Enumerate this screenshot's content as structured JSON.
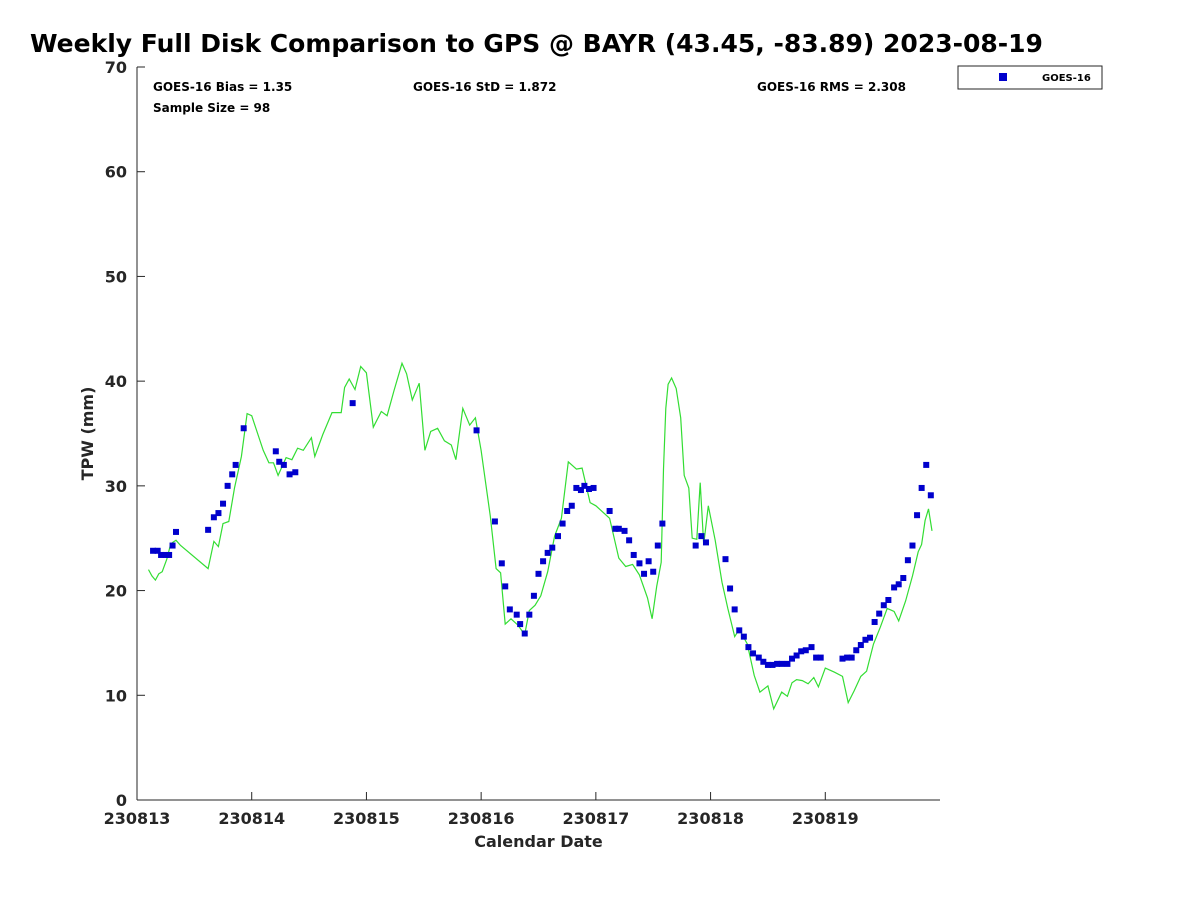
{
  "chart_data": {
    "type": "scatter",
    "title": "Weekly Full Disk Comparison to GPS @ BAYR (43.45, -83.89) 2023-08-19",
    "xlabel": "Calendar Date",
    "ylabel": "TPW (mm)",
    "xlim": [
      230813,
      230820
    ],
    "ylim": [
      0,
      70
    ],
    "x_tick_labels": [
      "230813",
      "230814",
      "230815",
      "230816",
      "230817",
      "230818",
      "230819"
    ],
    "y_ticks": [
      0,
      10,
      20,
      30,
      40,
      50,
      60,
      70
    ],
    "grid": false,
    "legend_position": "top-right",
    "stats": [
      "GOES-16 Bias = 1.35",
      "GOES-16 StD = 1.872",
      "GOES-16 RMS = 2.308",
      "Sample Size = 98"
    ],
    "colors": {
      "goes16": "#0000cc",
      "gps": "#33dd33",
      "axis": "#262626"
    },
    "series": [
      {
        "name": "GOES-16",
        "kind": "scatter",
        "x": [
          230813.14,
          230813.18,
          230813.21,
          230813.25,
          230813.28,
          230813.31,
          230813.34,
          230813.62,
          230813.67,
          230813.71,
          230813.75,
          230813.79,
          230813.83,
          230813.86,
          230813.93,
          230814.21,
          230814.24,
          230814.28,
          230814.33,
          230814.38,
          230814.88,
          230815.96,
          230816.12,
          230816.18,
          230816.21,
          230816.25,
          230816.31,
          230816.34,
          230816.38,
          230816.42,
          230816.46,
          230816.5,
          230816.54,
          230816.58,
          230816.62,
          230816.67,
          230816.71,
          230816.75,
          230816.79,
          230816.83,
          230816.87,
          230816.9,
          230816.94,
          230816.98,
          230817.12,
          230817.17,
          230817.2,
          230817.25,
          230817.29,
          230817.33,
          230817.38,
          230817.42,
          230817.46,
          230817.5,
          230817.54,
          230817.58,
          230817.87,
          230817.92,
          230817.96,
          230818.13,
          230818.17,
          230818.21,
          230818.25,
          230818.29,
          230818.33,
          230818.37,
          230818.42,
          230818.46,
          230818.5,
          230818.54,
          230818.58,
          230818.62,
          230818.67,
          230818.71,
          230818.75,
          230818.79,
          230818.83,
          230818.88,
          230818.92,
          230818.96,
          230819.15,
          230819.19,
          230819.23,
          230819.27,
          230819.31,
          230819.35,
          230819.39,
          230819.43,
          230819.47,
          230819.51,
          230819.55,
          230819.6,
          230819.64,
          230819.68,
          230819.72,
          230819.76,
          230819.8,
          230819.84,
          230819.88,
          230819.92
        ],
        "y": [
          23.8,
          23.8,
          23.4,
          23.4,
          23.4,
          24.3,
          25.6,
          25.8,
          27.0,
          27.4,
          28.3,
          30.0,
          31.1,
          32.0,
          35.5,
          33.3,
          32.3,
          32.0,
          31.1,
          31.3,
          37.9,
          35.3,
          26.6,
          22.6,
          20.4,
          18.2,
          17.7,
          16.8,
          15.9,
          17.7,
          19.5,
          21.6,
          22.8,
          23.6,
          24.1,
          25.2,
          26.4,
          27.6,
          28.1,
          29.8,
          29.6,
          30.0,
          29.7,
          29.8,
          27.6,
          25.9,
          25.9,
          25.7,
          24.8,
          23.4,
          22.6,
          21.6,
          22.8,
          21.8,
          24.3,
          26.4,
          24.3,
          25.2,
          24.6,
          23.0,
          20.2,
          18.2,
          16.2,
          15.6,
          14.6,
          14.0,
          13.6,
          13.2,
          12.9,
          12.9,
          13.0,
          13.0,
          13.0,
          13.5,
          13.8,
          14.2,
          14.3,
          14.6,
          13.6,
          13.6,
          13.5,
          13.6,
          13.6,
          14.3,
          14.8,
          15.3,
          15.5,
          17.0,
          17.8,
          18.6,
          19.1,
          20.3,
          20.6,
          21.2,
          22.9,
          24.3,
          27.2,
          29.8,
          32.0,
          29.1
        ]
      },
      {
        "name": "GPS",
        "kind": "line",
        "x": [
          230813.1,
          230813.13,
          230813.16,
          230813.19,
          230813.22,
          230813.26,
          230813.29,
          230813.31,
          230813.34,
          230813.38,
          230813.62,
          230813.67,
          230813.71,
          230813.75,
          230813.8,
          230813.85,
          230813.91,
          230813.96,
          230814.0,
          230814.1,
          230814.15,
          230814.19,
          230814.23,
          230814.3,
          230814.35,
          230814.4,
          230814.45,
          230814.52,
          230814.55,
          230814.62,
          230814.7,
          230814.78,
          230814.81,
          230814.85,
          230814.9,
          230814.95,
          230815.0,
          230815.06,
          230815.13,
          230815.18,
          230815.24,
          230815.31,
          230815.35,
          230815.4,
          230815.46,
          230815.51,
          230815.56,
          230815.62,
          230815.68,
          230815.74,
          230815.78,
          230815.84,
          230815.9,
          230815.95,
          230816.0,
          230816.08,
          230816.13,
          230816.17,
          230816.21,
          230816.26,
          230816.32,
          230816.38,
          230816.42,
          230816.47,
          230816.52,
          230816.58,
          230816.64,
          230816.7,
          230816.76,
          230816.83,
          230816.88,
          230816.95,
          230817.0,
          230817.12,
          230817.2,
          230817.26,
          230817.32,
          230817.38,
          230817.45,
          230817.49,
          230817.53,
          230817.57,
          230817.59,
          230817.61,
          230817.63,
          230817.66,
          230817.7,
          230817.74,
          230817.77,
          230817.81,
          230817.84,
          230817.88,
          230817.91,
          230817.94,
          230817.98,
          230818.04,
          230818.1,
          230818.15,
          230818.21,
          230818.25,
          230818.32,
          230818.38,
          230818.43,
          230818.5,
          230818.55,
          230818.62,
          230818.67,
          230818.71,
          230818.75,
          230818.8,
          230818.85,
          230818.9,
          230818.94,
          230819.0,
          230819.08,
          230819.15,
          230819.2,
          230819.25,
          230819.31,
          230819.36,
          230819.42,
          230819.48,
          230819.54,
          230819.6,
          230819.64,
          230819.7,
          230819.76,
          230819.81,
          230819.84,
          230819.87,
          230819.9,
          230819.93
        ],
        "y": [
          22.0,
          21.4,
          21.0,
          21.6,
          21.8,
          23.0,
          24.3,
          24.6,
          24.8,
          24.3,
          22.1,
          24.7,
          24.2,
          26.4,
          26.6,
          29.8,
          32.8,
          36.9,
          36.7,
          33.4,
          32.2,
          32.2,
          31.0,
          32.7,
          32.5,
          33.6,
          33.4,
          34.6,
          32.8,
          34.9,
          37.0,
          37.0,
          39.4,
          40.2,
          39.2,
          41.4,
          40.8,
          35.6,
          37.1,
          36.7,
          39.1,
          41.7,
          40.7,
          38.2,
          39.8,
          33.4,
          35.2,
          35.5,
          34.3,
          33.9,
          32.5,
          37.4,
          35.8,
          36.5,
          33.4,
          27.1,
          22.1,
          21.7,
          16.8,
          17.3,
          16.7,
          15.8,
          18.1,
          18.6,
          19.5,
          21.8,
          25.2,
          26.9,
          32.3,
          31.6,
          31.7,
          28.4,
          28.1,
          26.9,
          23.1,
          22.3,
          22.5,
          21.5,
          19.3,
          17.3,
          20.4,
          22.7,
          31.6,
          37.4,
          39.7,
          40.3,
          39.3,
          36.5,
          31.0,
          29.8,
          25.0,
          24.9,
          30.3,
          24.4,
          28.1,
          24.8,
          20.8,
          18.3,
          15.6,
          16.3,
          14.9,
          11.9,
          10.3,
          10.9,
          8.7,
          10.3,
          9.9,
          11.2,
          11.5,
          11.4,
          11.1,
          11.7,
          10.8,
          12.6,
          12.2,
          11.8,
          9.3,
          10.4,
          11.8,
          12.3,
          14.9,
          16.5,
          18.3,
          18.0,
          17.1,
          19.0,
          21.4,
          23.7,
          24.4,
          26.7,
          27.8,
          25.7
        ]
      }
    ]
  }
}
